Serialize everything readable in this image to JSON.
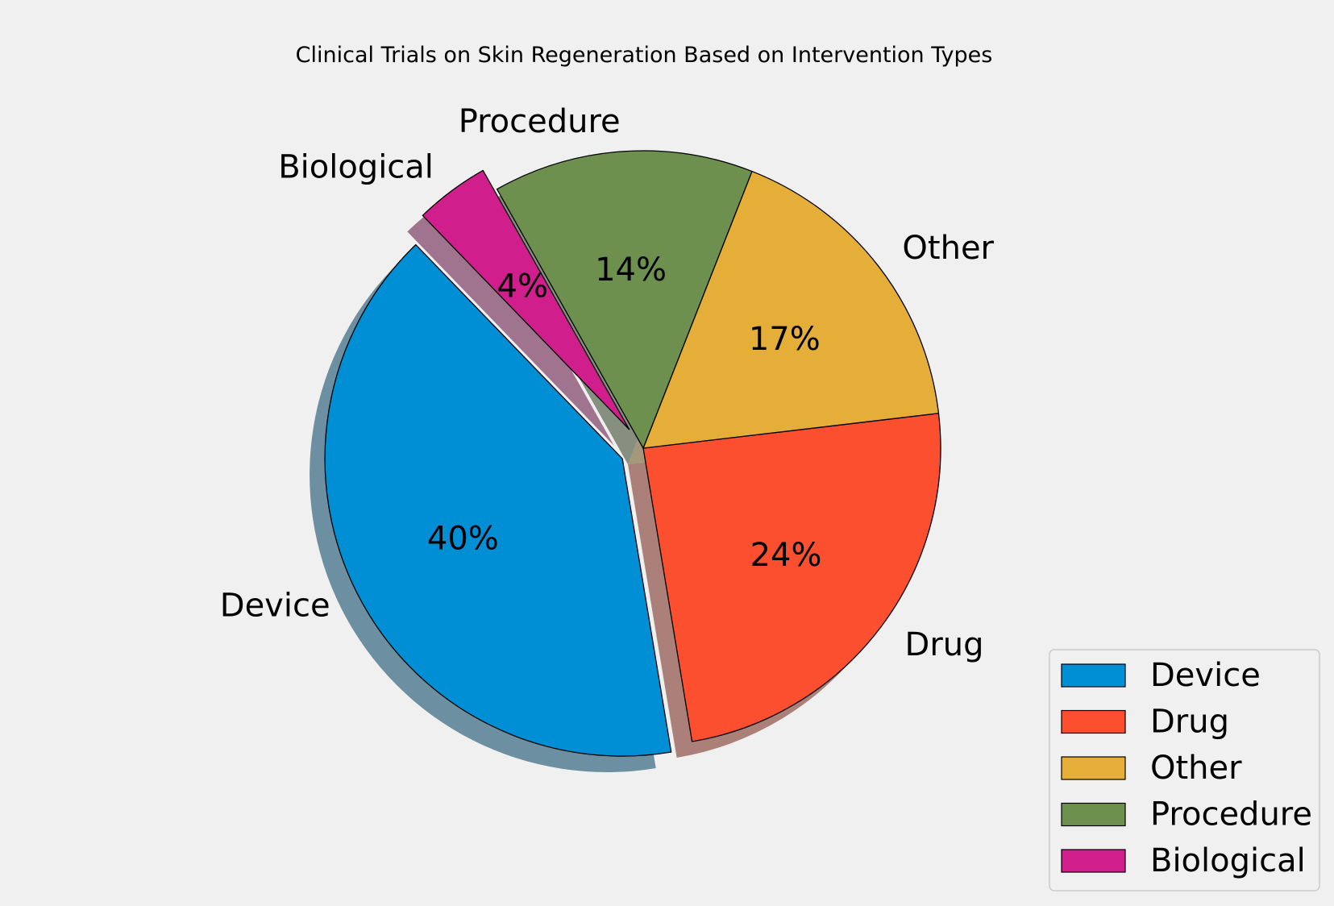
{
  "chart_data": {
    "type": "pie",
    "title": "Clinical Trials on Skin Regeneration Based on Intervention Types",
    "categories": [
      "Device",
      "Drug",
      "Other",
      "Procedure",
      "Biological"
    ],
    "values": [
      40,
      24,
      17,
      14,
      4
    ],
    "percent_labels": [
      "40%",
      "24%",
      "17%",
      "14%",
      "4%"
    ],
    "colors": [
      "#008fd5",
      "#fc4f30",
      "#e5ae38",
      "#6d904f",
      "#d01f8c"
    ],
    "exploded": [
      "Device",
      "Biological"
    ],
    "shadow": true,
    "legend": {
      "placement": "lower-right",
      "entries": [
        "Device",
        "Drug",
        "Other",
        "Procedure",
        "Biological"
      ]
    }
  }
}
